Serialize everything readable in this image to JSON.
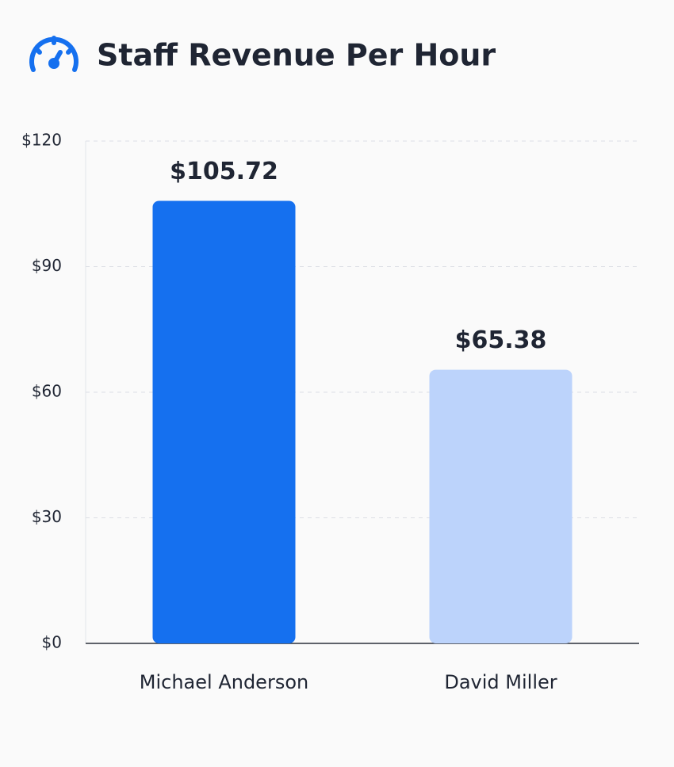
{
  "chart_data": {
    "type": "bar",
    "title": "Staff Revenue Per Hour",
    "categories": [
      "Michael Anderson",
      "David Miller"
    ],
    "values": [
      105.72,
      65.38
    ],
    "value_labels": [
      "$105.72",
      "$65.38"
    ],
    "colors": [
      "#1570ef",
      "#bcd3fb"
    ],
    "ylim": [
      0,
      120
    ],
    "yticks": [
      {
        "value": 0,
        "label": "$0"
      },
      {
        "value": 30,
        "label": "$30"
      },
      {
        "value": 60,
        "label": "$60"
      },
      {
        "value": 90,
        "label": "$90"
      },
      {
        "value": 120,
        "label": "$120"
      }
    ],
    "grid": true
  }
}
